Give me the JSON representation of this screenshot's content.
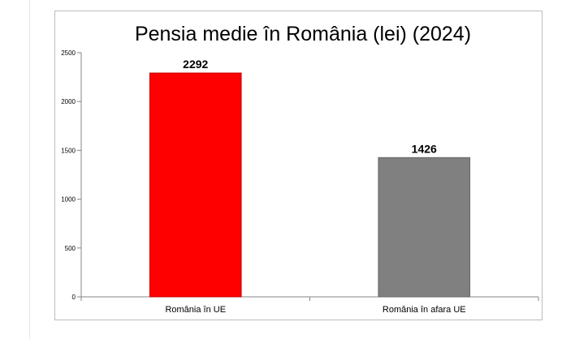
{
  "chart_data": {
    "type": "bar",
    "title": "Pensia medie în România (lei) (2024)",
    "categories": [
      "România în UE",
      "România în afara UE"
    ],
    "values": [
      2292,
      1426
    ],
    "value_labels": [
      "2292",
      "1426"
    ],
    "y_ticks": [
      "0",
      "500",
      "1000",
      "1500",
      "2000",
      "2500"
    ],
    "ylim": [
      0,
      2500
    ],
    "xlabel": "",
    "ylabel": "",
    "grid": false,
    "legend": "none",
    "bar_colors": [
      "#ff0000",
      "#808080"
    ],
    "bar_edge_colors": [
      "#c00000",
      "#666666"
    ]
  }
}
